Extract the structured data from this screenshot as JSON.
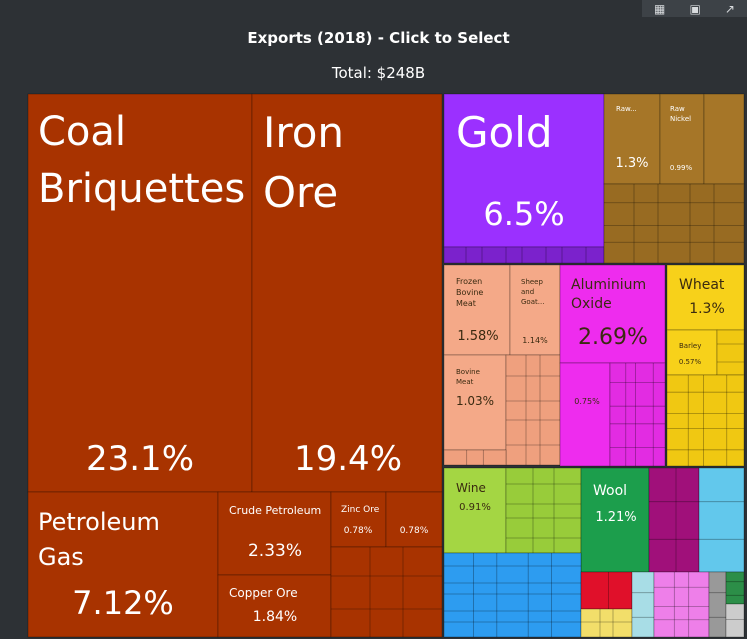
{
  "toolbar": {
    "icons": [
      "table-icon",
      "image-icon",
      "share-icon"
    ]
  },
  "header": {
    "title": "Exports (2018) - Click to Select",
    "subtitle": "Total: $248B"
  },
  "chart_data": {
    "type": "treemap",
    "title": "Exports (2018) - Click to Select",
    "subtitle": "Total: $248B",
    "items": [
      {
        "name": "Coal Briquettes",
        "value": "23.1%",
        "color": "#a83300"
      },
      {
        "name": "Iron Ore",
        "value": "19.4%",
        "color": "#a83300"
      },
      {
        "name": "Petroleum Gas",
        "value": "7.12%",
        "color": "#a83300"
      },
      {
        "name": "Crude Petroleum",
        "value": "2.33%",
        "color": "#a83300"
      },
      {
        "name": "Copper Ore",
        "value": "1.84%",
        "color": "#a83300"
      },
      {
        "name": "Zinc Ore",
        "value": "0.78%",
        "color": "#a83300"
      },
      {
        "name": "",
        "value": "0.78%",
        "color": "#a83300"
      },
      {
        "name": "Gold",
        "value": "6.5%",
        "color": "#9b30ff"
      },
      {
        "name": "Raw...",
        "value": "1.3%",
        "color": "#a67628"
      },
      {
        "name": "Raw Nickel",
        "value": "0.99%",
        "color": "#a67628"
      },
      {
        "name": "Frozen Bovine Meat",
        "value": "1.58%",
        "color": "#f4a988"
      },
      {
        "name": "Sheep and Goat...",
        "value": "1.14%",
        "color": "#f4a988"
      },
      {
        "name": "Bovine Meat",
        "value": "1.03%",
        "color": "#f4a988"
      },
      {
        "name": "Aluminium Oxide",
        "value": "2.69%",
        "color": "#ee2cee"
      },
      {
        "name": "",
        "value": "0.75%",
        "color": "#ee2cee"
      },
      {
        "name": "Wheat",
        "value": "1.3%",
        "color": "#f7d11a"
      },
      {
        "name": "Barley",
        "value": "0.57%",
        "color": "#f7d11a"
      },
      {
        "name": "Wine",
        "value": "0.91%",
        "color": "#a4d643"
      },
      {
        "name": "Wool",
        "value": "1.21%",
        "color": "#1c9e4c"
      }
    ]
  }
}
